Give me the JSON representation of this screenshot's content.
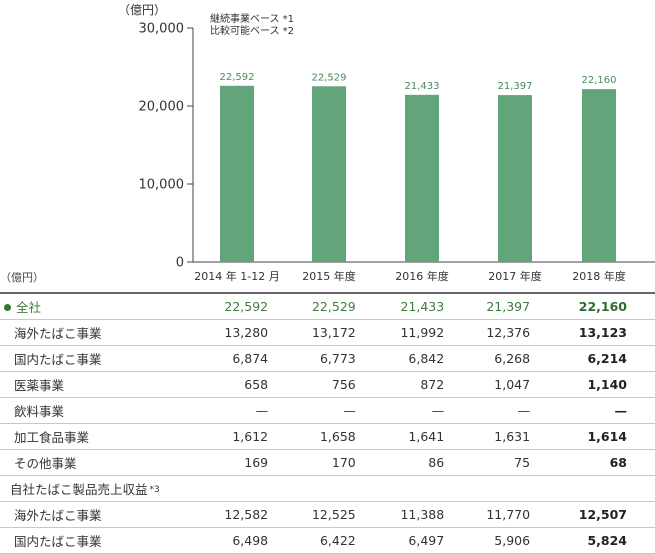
{
  "chart_data": {
    "type": "bar",
    "unit_label": "（億円）",
    "notes": [
      "継続事業ベース *1",
      "比較可能ベース *2"
    ],
    "categories": [
      "2014 年 1-12 月",
      "2015 年度",
      "2016 年度",
      "2017 年度",
      "2018 年度"
    ],
    "values": [
      22592,
      22529,
      21433,
      21397,
      22160
    ],
    "value_labels": [
      "22,592",
      "22,529",
      "21,433",
      "21,397",
      "22,160"
    ],
    "yticks": [
      "0",
      "10,000",
      "20,000",
      "30,000"
    ],
    "ytick_values": [
      0,
      10000,
      20000,
      30000
    ],
    "ylim": [
      0,
      30000
    ],
    "bar_color": "#63a57a",
    "axis_color": "#444444"
  },
  "table": {
    "unit_label": "（億円）",
    "rows": [
      {
        "label": "全社",
        "values": [
          "22,592",
          "22,529",
          "21,433",
          "21,397",
          "22,160"
        ],
        "kind": "total"
      },
      {
        "label": "海外たばこ事業",
        "values": [
          "13,280",
          "13,172",
          "11,992",
          "12,376",
          "13,123"
        ]
      },
      {
        "label": "国内たばこ事業",
        "values": [
          "6,874",
          "6,773",
          "6,842",
          "6,268",
          "6,214"
        ]
      },
      {
        "label": "医薬事業",
        "values": [
          "658",
          "756",
          "872",
          "1,047",
          "1,140"
        ]
      },
      {
        "label": "飲料事業",
        "values": [
          "—",
          "—",
          "—",
          "—",
          "—"
        ]
      },
      {
        "label": "加工食品事業",
        "values": [
          "1,612",
          "1,658",
          "1,641",
          "1,631",
          "1,614"
        ]
      },
      {
        "label": "その他事業",
        "values": [
          "169",
          "170",
          "86",
          "75",
          "68"
        ]
      },
      {
        "label": "自社たばこ製品売上収益",
        "note": "*3",
        "values": [
          "",
          "",
          "",
          "",
          ""
        ],
        "kind": "section"
      },
      {
        "label": "海外たばこ事業",
        "values": [
          "12,582",
          "12,525",
          "11,388",
          "11,770",
          "12,507"
        ]
      },
      {
        "label": "国内たばこ事業",
        "values": [
          "6,498",
          "6,422",
          "6,497",
          "5,906",
          "5,824"
        ]
      }
    ]
  }
}
